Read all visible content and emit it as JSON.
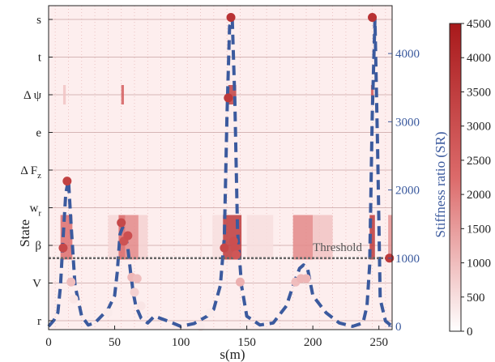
{
  "chart_data": {
    "type": "heatmap",
    "title": "",
    "xlabel": "s(m)",
    "ylabel": "State",
    "y2label": "Stiffness ratio (SR)",
    "xlim": [
      0,
      260
    ],
    "xticks": [
      0,
      50,
      100,
      150,
      200,
      250
    ],
    "y2lim": [
      0,
      4600
    ],
    "y2ticks": [
      0,
      1000,
      2000,
      3000,
      4000
    ],
    "colorbar": {
      "label": "",
      "range": [
        0,
        4500
      ],
      "ticks": [
        0,
        500,
        1000,
        1500,
        2000,
        2500,
        3000,
        3500,
        4000,
        4500
      ],
      "color_low": "#ffffff",
      "color_high": "#a8191b"
    },
    "states": [
      {
        "label": "s",
        "base": "s",
        "sub": ""
      },
      {
        "label": "t",
        "base": "t",
        "sub": ""
      },
      {
        "label": "Δψ",
        "base": "Δ ψ",
        "sub": ""
      },
      {
        "label": "e",
        "base": "e",
        "sub": ""
      },
      {
        "label": "ΔFz",
        "base": "Δ F",
        "sub": "z"
      },
      {
        "label": "wr",
        "base": "w",
        "sub": "r"
      },
      {
        "label": "β",
        "base": "β",
        "sub": ""
      },
      {
        "label": "V",
        "base": "V",
        "sub": ""
      },
      {
        "label": "r",
        "base": "r",
        "sub": ""
      }
    ],
    "heatmap_bands": [
      {
        "state": "Δψ",
        "x": [
          11,
          13
        ],
        "value": 900
      },
      {
        "state": "Δψ",
        "x": [
          55,
          57
        ],
        "value": 2600
      },
      {
        "state": "Δψ",
        "x": [
          136,
          142
        ],
        "value": 3400
      },
      {
        "state": "Δψ",
        "x": [
          244,
          246
        ],
        "value": 2800
      },
      {
        "state": "β",
        "x": [
          9,
          18
        ],
        "value": 2200
      },
      {
        "state": "β",
        "x": [
          45,
          53
        ],
        "value": 600
      },
      {
        "state": "β",
        "x": [
          53,
          58
        ],
        "value": 2400
      },
      {
        "state": "β",
        "x": [
          58,
          68
        ],
        "value": 1800
      },
      {
        "state": "β",
        "x": [
          68,
          75
        ],
        "value": 700
      },
      {
        "state": "β",
        "x": [
          115,
          116
        ],
        "value": 500
      },
      {
        "state": "β",
        "x": [
          124,
          132
        ],
        "value": 500
      },
      {
        "state": "β",
        "x": [
          132,
          146
        ],
        "value": 3600
      },
      {
        "state": "β",
        "x": [
          150,
          170
        ],
        "value": 500
      },
      {
        "state": "β",
        "x": [
          185,
          200
        ],
        "value": 1800
      },
      {
        "state": "β",
        "x": [
          200,
          215
        ],
        "value": 900
      },
      {
        "state": "β",
        "x": [
          243,
          247
        ],
        "value": 3600
      },
      {
        "state": "β",
        "x": [
          257,
          260
        ],
        "value": 1600
      }
    ],
    "threshold": {
      "label": "Threshold",
      "value": 1000
    },
    "series": [
      {
        "name": "",
        "style": "dashed",
        "color": "#3b5a9e",
        "x": [
          0,
          4,
          7,
          9,
          11,
          13,
          15,
          17,
          20,
          25,
          30,
          35,
          40,
          45,
          50,
          52,
          54,
          56,
          58,
          60,
          62,
          64,
          66,
          70,
          75,
          80,
          90,
          100,
          110,
          120,
          125,
          130,
          133,
          135,
          137,
          139,
          141,
          143,
          146,
          150,
          160,
          170,
          180,
          186,
          190,
          193,
          196,
          200,
          210,
          220,
          230,
          238,
          241,
          243,
          245,
          247,
          249,
          251,
          255,
          260
        ],
        "y": [
          0,
          90,
          200,
          600,
          1300,
          1950,
          2150,
          1500,
          600,
          150,
          20,
          50,
          150,
          250,
          450,
          800,
          1350,
          1450,
          1350,
          1150,
          800,
          500,
          300,
          120,
          50,
          150,
          80,
          0,
          40,
          150,
          250,
          600,
          1300,
          3100,
          4400,
          4500,
          3300,
          1400,
          600,
          150,
          20,
          50,
          300,
          650,
          850,
          900,
          850,
          450,
          200,
          50,
          0,
          50,
          300,
          900,
          3100,
          4500,
          2600,
          400,
          80,
          0
        ]
      }
    ],
    "markers": [
      {
        "x": 11,
        "y": 1150,
        "value": 3200
      },
      {
        "x": 14,
        "y": 2130,
        "value": 3400
      },
      {
        "x": 17,
        "y": 650,
        "value": 1000
      },
      {
        "x": 19,
        "y": 400,
        "value": 400
      },
      {
        "x": 45,
        "y": 200,
        "value": 300
      },
      {
        "x": 55,
        "y": 1520,
        "value": 3200
      },
      {
        "x": 57,
        "y": 1250,
        "value": 2900
      },
      {
        "x": 60,
        "y": 1330,
        "value": 3000
      },
      {
        "x": 63,
        "y": 720,
        "value": 1100
      },
      {
        "x": 65,
        "y": 500,
        "value": 700
      },
      {
        "x": 67,
        "y": 700,
        "value": 1000
      },
      {
        "x": 70,
        "y": 300,
        "value": 400
      },
      {
        "x": 115,
        "y": 0,
        "value": 300
      },
      {
        "x": 122,
        "y": 200,
        "value": 300
      },
      {
        "x": 133,
        "y": 1150,
        "value": 3200
      },
      {
        "x": 136,
        "y": 3350,
        "value": 3600
      },
      {
        "x": 138,
        "y": 4530,
        "value": 3800
      },
      {
        "x": 140,
        "y": 1250,
        "value": 3000
      },
      {
        "x": 141,
        "y": 1150,
        "value": 3000
      },
      {
        "x": 142,
        "y": 1050,
        "value": 2800
      },
      {
        "x": 145,
        "y": 650,
        "value": 1200
      },
      {
        "x": 187,
        "y": 650,
        "value": 1000
      },
      {
        "x": 191,
        "y": 700,
        "value": 1100
      },
      {
        "x": 195,
        "y": 700,
        "value": 1100
      },
      {
        "x": 245,
        "y": 4530,
        "value": 3800
      },
      {
        "x": 258,
        "y": 1000,
        "value": 3600
      }
    ]
  }
}
